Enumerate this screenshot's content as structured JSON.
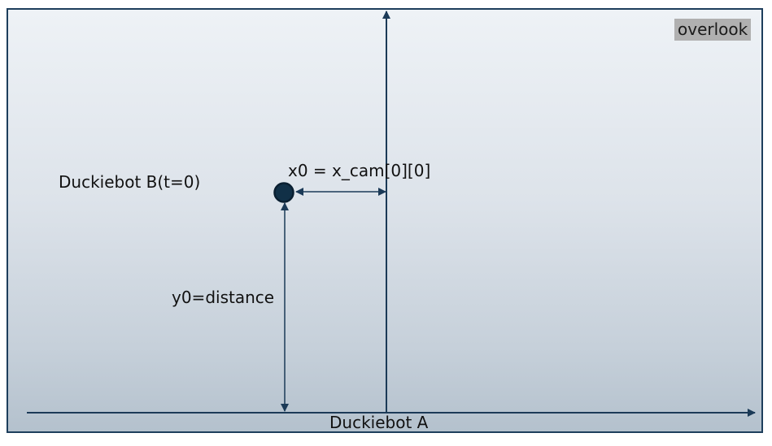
{
  "view_label": "overlook",
  "duckiebot_b_label": "Duckiebot B(t=0)",
  "x0_label": "x0 = x_cam[0][0]",
  "y0_label": "y0=distance",
  "duckiebot_a_label": "Duckiebot A",
  "colors": {
    "frame": "#1d3e5c",
    "arrow": "#1b3a57",
    "marker_fill": "#113047",
    "marker_stroke": "#0a1f31",
    "label_bg": "#b0b0b0"
  }
}
